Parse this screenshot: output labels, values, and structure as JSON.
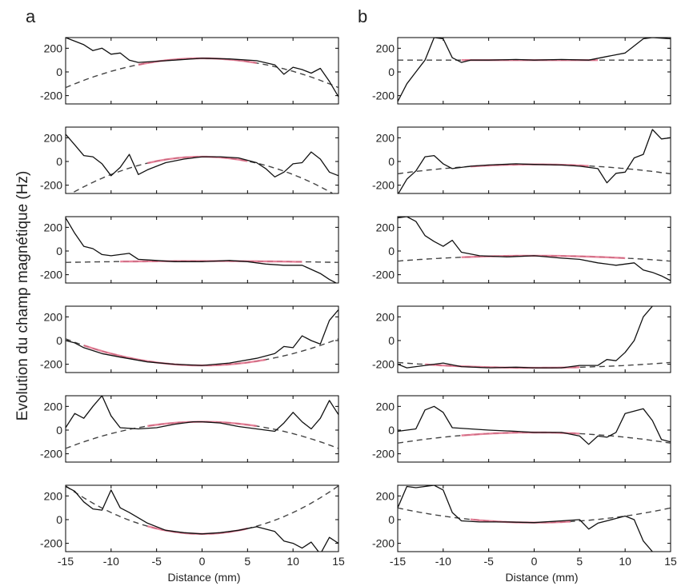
{
  "figure": {
    "ylabel": "Evolution du champ magnétique (Hz)",
    "xlabel": "Distance (mm)",
    "panel_labels": [
      "a",
      "b"
    ]
  },
  "style": {
    "measured_color": "#111111",
    "fit_color": "#444444",
    "highlight_color": "#e26f8a"
  },
  "chart_data": {
    "type": "line",
    "layout": "6 rows x 2 columns of small-multiple line plots",
    "x_ticks": [
      -15,
      -10,
      -5,
      0,
      5,
      10,
      15
    ],
    "y_ticks": [
      -200,
      0,
      200
    ],
    "xlim": [
      -15,
      15
    ],
    "ylim": [
      -270,
      290
    ],
    "series_legend": {
      "measured": "solid black line (noisy signal)",
      "fit": "dashed line (parabolic fit)",
      "fit_region": "pink overlay where measurement follows fit"
    },
    "panels": [
      {
        "column": "a",
        "row": 1,
        "measured": [
          [
            -15,
            290
          ],
          [
            -13,
            230
          ],
          [
            -12,
            180
          ],
          [
            -11,
            200
          ],
          [
            -10,
            150
          ],
          [
            -9,
            160
          ],
          [
            -8,
            100
          ],
          [
            -7,
            80
          ],
          [
            -5,
            90
          ],
          [
            -3,
            100
          ],
          [
            0,
            115
          ],
          [
            3,
            110
          ],
          [
            6,
            95
          ],
          [
            8,
            60
          ],
          [
            9,
            -20
          ],
          [
            10,
            40
          ],
          [
            11,
            20
          ],
          [
            12,
            -10
          ],
          [
            13,
            30
          ],
          [
            14,
            -80
          ],
          [
            15,
            -210
          ]
        ],
        "fit_a": -1.1,
        "fit_c": 115,
        "fit_region": [
          -7,
          6
        ]
      },
      {
        "column": "a",
        "row": 2,
        "measured": [
          [
            -15,
            230
          ],
          [
            -14,
            140
          ],
          [
            -13,
            50
          ],
          [
            -12,
            40
          ],
          [
            -11,
            -20
          ],
          [
            -10,
            -120
          ],
          [
            -9,
            -50
          ],
          [
            -8,
            60
          ],
          [
            -7,
            -110
          ],
          [
            -6,
            -70
          ],
          [
            -4,
            -10
          ],
          [
            -2,
            20
          ],
          [
            0,
            40
          ],
          [
            2,
            40
          ],
          [
            4,
            30
          ],
          [
            6,
            -10
          ],
          [
            7,
            -60
          ],
          [
            8,
            -130
          ],
          [
            9,
            -90
          ],
          [
            10,
            -20
          ],
          [
            11,
            -10
          ],
          [
            12,
            80
          ],
          [
            13,
            20
          ],
          [
            14,
            -90
          ],
          [
            15,
            -120
          ]
        ],
        "fit_a": -1.5,
        "fit_c": 40,
        "fit_region": [
          -6,
          5
        ]
      },
      {
        "column": "a",
        "row": 3,
        "measured": [
          [
            -15,
            280
          ],
          [
            -14,
            150
          ],
          [
            -13,
            40
          ],
          [
            -12,
            20
          ],
          [
            -11,
            -30
          ],
          [
            -10,
            -40
          ],
          [
            -8,
            -20
          ],
          [
            -7,
            -70
          ],
          [
            -5,
            -80
          ],
          [
            -3,
            -90
          ],
          [
            0,
            -90
          ],
          [
            3,
            -80
          ],
          [
            5,
            -90
          ],
          [
            7,
            -110
          ],
          [
            9,
            -120
          ],
          [
            11,
            -120
          ],
          [
            13,
            -190
          ],
          [
            14,
            -240
          ],
          [
            15,
            -280
          ]
        ],
        "fit_a": -0.05,
        "fit_c": -85,
        "fit_region": [
          -9,
          11
        ]
      },
      {
        "column": "a",
        "row": 4,
        "measured": [
          [
            -15,
            0
          ],
          [
            -14,
            -20
          ],
          [
            -13,
            -60
          ],
          [
            -11,
            -110
          ],
          [
            -9,
            -140
          ],
          [
            -6,
            -180
          ],
          [
            -3,
            -200
          ],
          [
            0,
            -210
          ],
          [
            3,
            -190
          ],
          [
            6,
            -150
          ],
          [
            8,
            -110
          ],
          [
            9,
            -50
          ],
          [
            10,
            -60
          ],
          [
            11,
            40
          ],
          [
            12,
            0
          ],
          [
            13,
            -30
          ],
          [
            14,
            170
          ],
          [
            15,
            260
          ]
        ],
        "fit_a": 1.0,
        "fit_c": -210,
        "fit_region": [
          -13,
          7
        ]
      },
      {
        "column": "a",
        "row": 5,
        "measured": [
          [
            -15,
            20
          ],
          [
            -14,
            140
          ],
          [
            -13,
            100
          ],
          [
            -12,
            200
          ],
          [
            -11,
            290
          ],
          [
            -10,
            120
          ],
          [
            -9,
            20
          ],
          [
            -7,
            10
          ],
          [
            -5,
            20
          ],
          [
            -3,
            50
          ],
          [
            -1,
            70
          ],
          [
            0,
            70
          ],
          [
            2,
            60
          ],
          [
            4,
            30
          ],
          [
            6,
            10
          ],
          [
            8,
            -10
          ],
          [
            9,
            60
          ],
          [
            10,
            150
          ],
          [
            11,
            70
          ],
          [
            12,
            10
          ],
          [
            13,
            100
          ],
          [
            14,
            250
          ],
          [
            15,
            130
          ]
        ],
        "fit_a": -1.0,
        "fit_c": 70,
        "fit_region": [
          -6,
          6
        ]
      },
      {
        "column": "a",
        "row": 6,
        "measured": [
          [
            -15,
            280
          ],
          [
            -14,
            240
          ],
          [
            -13,
            150
          ],
          [
            -12,
            90
          ],
          [
            -11,
            80
          ],
          [
            -10,
            250
          ],
          [
            -9,
            100
          ],
          [
            -8,
            60
          ],
          [
            -6,
            -30
          ],
          [
            -4,
            -90
          ],
          [
            -2,
            -110
          ],
          [
            0,
            -120
          ],
          [
            2,
            -110
          ],
          [
            4,
            -90
          ],
          [
            6,
            -60
          ],
          [
            8,
            -100
          ],
          [
            9,
            -180
          ],
          [
            10,
            -200
          ],
          [
            11,
            -240
          ],
          [
            12,
            -190
          ],
          [
            13,
            -290
          ],
          [
            14,
            -150
          ],
          [
            15,
            -200
          ]
        ],
        "fit_a": 1.8,
        "fit_c": -120,
        "fit_region": [
          -6,
          5
        ]
      },
      {
        "column": "b",
        "row": 1,
        "measured": [
          [
            -15,
            -250
          ],
          [
            -14,
            -100
          ],
          [
            -13,
            0
          ],
          [
            -12,
            100
          ],
          [
            -11,
            290
          ],
          [
            -10,
            280
          ],
          [
            -9,
            120
          ],
          [
            -8,
            80
          ],
          [
            -7,
            100
          ],
          [
            -5,
            100
          ],
          [
            -2,
            105
          ],
          [
            0,
            100
          ],
          [
            3,
            105
          ],
          [
            6,
            100
          ],
          [
            8,
            130
          ],
          [
            10,
            160
          ],
          [
            12,
            280
          ],
          [
            13,
            290
          ],
          [
            15,
            280
          ]
        ],
        "fit_a": 0.0,
        "fit_c": 100,
        "fit_region": [
          -8,
          7
        ]
      },
      {
        "column": "b",
        "row": 2,
        "measured": [
          [
            -15,
            -280
          ],
          [
            -14,
            -150
          ],
          [
            -13,
            -80
          ],
          [
            -12,
            40
          ],
          [
            -11,
            50
          ],
          [
            -10,
            -20
          ],
          [
            -9,
            -60
          ],
          [
            -7,
            -40
          ],
          [
            -5,
            -30
          ],
          [
            -2,
            -20
          ],
          [
            0,
            -25
          ],
          [
            3,
            -30
          ],
          [
            5,
            -40
          ],
          [
            7,
            -60
          ],
          [
            8,
            -180
          ],
          [
            9,
            -100
          ],
          [
            10,
            -90
          ],
          [
            11,
            30
          ],
          [
            12,
            60
          ],
          [
            13,
            270
          ],
          [
            14,
            190
          ],
          [
            15,
            200
          ]
        ],
        "fit_a": -0.35,
        "fit_c": -25,
        "fit_region": [
          -7,
          6
        ]
      },
      {
        "column": "b",
        "row": 3,
        "measured": [
          [
            -15,
            280
          ],
          [
            -14,
            290
          ],
          [
            -13,
            250
          ],
          [
            -12,
            130
          ],
          [
            -11,
            80
          ],
          [
            -10,
            40
          ],
          [
            -9,
            90
          ],
          [
            -8,
            -10
          ],
          [
            -6,
            -40
          ],
          [
            -3,
            -50
          ],
          [
            0,
            -40
          ],
          [
            3,
            -60
          ],
          [
            5,
            -70
          ],
          [
            7,
            -100
          ],
          [
            9,
            -120
          ],
          [
            11,
            -100
          ],
          [
            12,
            -160
          ],
          [
            13,
            -180
          ],
          [
            14,
            -210
          ],
          [
            15,
            -250
          ]
        ],
        "fit_a": -0.2,
        "fit_c": -40,
        "fit_region": [
          -8,
          10
        ]
      },
      {
        "column": "b",
        "row": 4,
        "measured": [
          [
            -15,
            -200
          ],
          [
            -14,
            -230
          ],
          [
            -13,
            -220
          ],
          [
            -12,
            -210
          ],
          [
            -10,
            -190
          ],
          [
            -8,
            -220
          ],
          [
            -5,
            -230
          ],
          [
            -2,
            -225
          ],
          [
            0,
            -230
          ],
          [
            3,
            -230
          ],
          [
            5,
            -210
          ],
          [
            7,
            -210
          ],
          [
            8,
            -160
          ],
          [
            9,
            -170
          ],
          [
            10,
            -100
          ],
          [
            11,
            0
          ],
          [
            12,
            200
          ],
          [
            13,
            290
          ]
        ],
        "fit_a": 0.2,
        "fit_c": -230,
        "fit_region": [
          -12,
          5
        ]
      },
      {
        "column": "b",
        "row": 5,
        "measured": [
          [
            -15,
            -10
          ],
          [
            -14,
            0
          ],
          [
            -13,
            10
          ],
          [
            -12,
            170
          ],
          [
            -11,
            200
          ],
          [
            -10,
            150
          ],
          [
            -9,
            20
          ],
          [
            -7,
            10
          ],
          [
            -5,
            0
          ],
          [
            -2,
            -10
          ],
          [
            0,
            -20
          ],
          [
            3,
            -20
          ],
          [
            5,
            -50
          ],
          [
            6,
            -120
          ],
          [
            7,
            -50
          ],
          [
            8,
            -60
          ],
          [
            9,
            -20
          ],
          [
            10,
            140
          ],
          [
            11,
            160
          ],
          [
            12,
            180
          ],
          [
            13,
            80
          ],
          [
            14,
            -80
          ],
          [
            15,
            -100
          ]
        ],
        "fit_a": -0.4,
        "fit_c": -20,
        "fit_region": [
          -8,
          5
        ]
      },
      {
        "column": "b",
        "row": 6,
        "measured": [
          [
            -15,
            100
          ],
          [
            -14,
            280
          ],
          [
            -13,
            270
          ],
          [
            -12,
            280
          ],
          [
            -11,
            290
          ],
          [
            -10,
            250
          ],
          [
            -9,
            60
          ],
          [
            -8,
            -10
          ],
          [
            -6,
            -20
          ],
          [
            -3,
            -20
          ],
          [
            0,
            -25
          ],
          [
            3,
            -10
          ],
          [
            5,
            0
          ],
          [
            6,
            -80
          ],
          [
            7,
            -30
          ],
          [
            9,
            10
          ],
          [
            10,
            30
          ],
          [
            11,
            0
          ],
          [
            12,
            -180
          ],
          [
            13,
            -270
          ]
        ],
        "fit_a": 0.55,
        "fit_c": -25,
        "fit_region": [
          -7,
          4
        ]
      }
    ]
  }
}
